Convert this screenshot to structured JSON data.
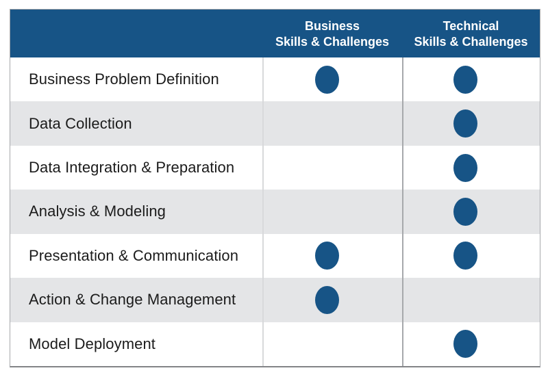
{
  "header": {
    "business": {
      "line1": "Business",
      "line2": "Skills & Challenges"
    },
    "technical": {
      "line1": "Technical",
      "line2": "Skills & Challenges"
    }
  },
  "rows": [
    {
      "label": "Business Problem Definition",
      "business": true,
      "technical": true
    },
    {
      "label": "Data Collection",
      "business": false,
      "technical": true
    },
    {
      "label": "Data Integration & Preparation",
      "business": false,
      "technical": true
    },
    {
      "label": "Analysis & Modeling",
      "business": false,
      "technical": true
    },
    {
      "label": "Presentation & Communication",
      "business": true,
      "technical": true
    },
    {
      "label": "Action & Change Management",
      "business": true,
      "technical": false
    },
    {
      "label": "Model Deployment",
      "business": false,
      "technical": true
    }
  ],
  "colors": {
    "header_bg": "#175486",
    "dot": "#175486",
    "row_alt_bg": "#e4e5e7",
    "row_bg": "#ffffff",
    "divider_light": "#d8d9db",
    "divider_dark": "#a6a8ab",
    "header_text": "#ffffff",
    "label_text": "#1b1b1b"
  },
  "chart_data": {
    "type": "table",
    "title": "",
    "columns": [
      "",
      "Business Skills & Challenges",
      "Technical Skills & Challenges"
    ],
    "rows": [
      {
        "label": "Business Problem Definition",
        "business": true,
        "technical": true
      },
      {
        "label": "Data Collection",
        "business": false,
        "technical": true
      },
      {
        "label": "Data Integration & Preparation",
        "business": false,
        "technical": true
      },
      {
        "label": "Analysis & Modeling",
        "business": false,
        "technical": true
      },
      {
        "label": "Presentation & Communication",
        "business": true,
        "technical": true
      },
      {
        "label": "Action & Change Management",
        "business": true,
        "technical": false
      },
      {
        "label": "Model Deployment",
        "business": false,
        "technical": true
      }
    ],
    "legend_note": "filled circle = skill/challenge applies to the phase"
  }
}
